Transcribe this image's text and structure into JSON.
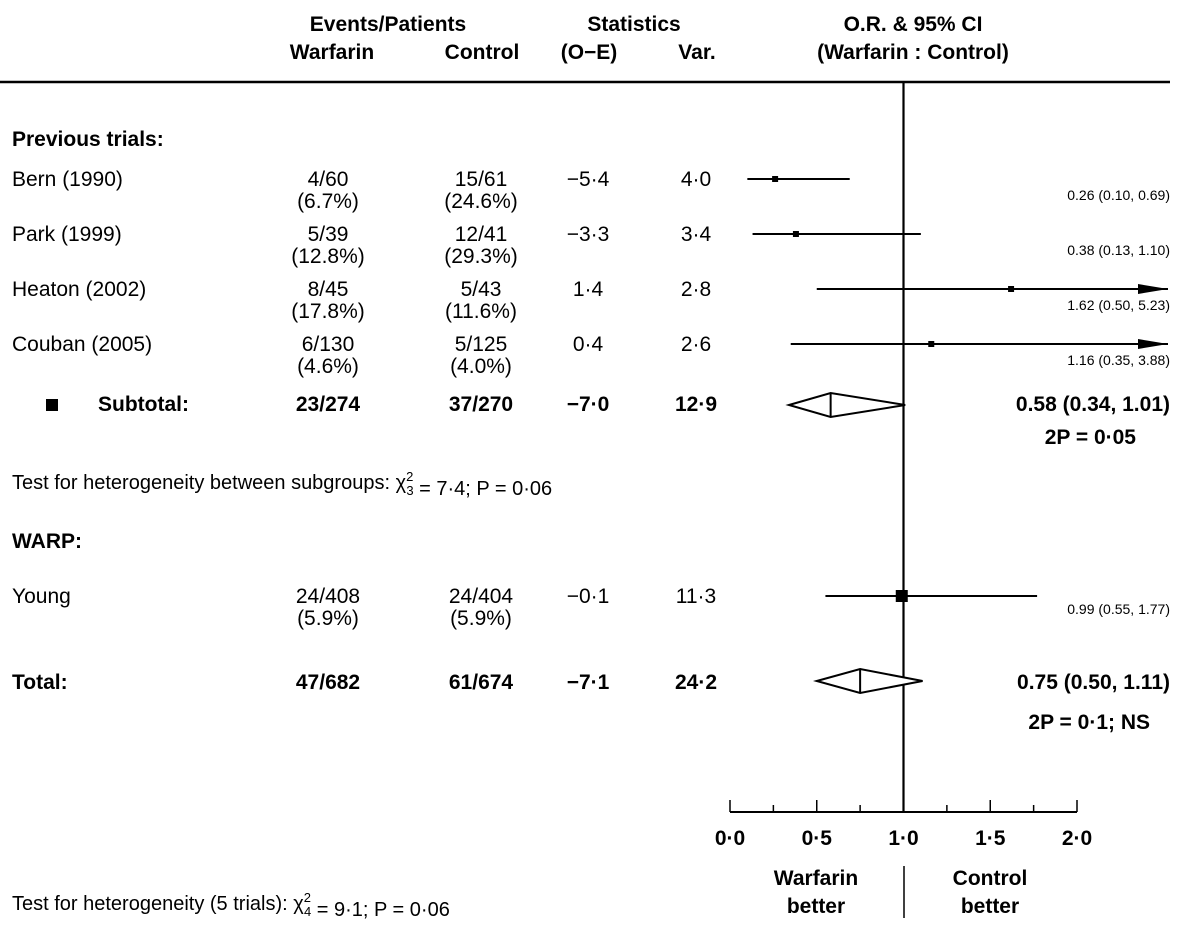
{
  "header": {
    "events_patients": "Events/Patients",
    "warfarin": "Warfarin",
    "control": "Control",
    "statistics": "Statistics",
    "oe": "(O−E)",
    "var": "Var.",
    "or_ci": "O.R. & 95% CI",
    "or_sub": "(Warfarin : Control)"
  },
  "sections": {
    "previous": "Previous trials:",
    "subtotal": "Subtotal:",
    "heterogeneity_sub_pre": "Test for heterogeneity between subgroups: ",
    "heterogeneity_sub_stat": " = 7·4; P = 0·06",
    "warp": "WARP:",
    "total": "Total:",
    "heterogeneity_all_pre": "Test for heterogeneity (5 trials): ",
    "heterogeneity_all_stat": " = 9·1; P = 0·06",
    "chi": "χ"
  },
  "subtotal_p": "2P = 0·05",
  "total_p": "2P = 0·1; NS",
  "axis_labels": {
    "left_line1": "Warfarin",
    "left_line2": "better",
    "right_line1": "Control",
    "right_line2": "better"
  },
  "chart_data": {
    "type": "forest",
    "x_ticks": [
      "0·0",
      "0·5",
      "1·0",
      "1·5",
      "2·0"
    ],
    "xlim": [
      0,
      2
    ],
    "reference_line": 1.0,
    "studies": [
      {
        "name": "Bern (1990)",
        "warfarin": "4/60",
        "warfarin_pct": "(6.7%)",
        "control": "15/61",
        "control_pct": "(24.6%)",
        "oe": "−5·4",
        "var": "4·0",
        "or": 0.26,
        "lo": 0.1,
        "hi": 0.69,
        "or_text": "0.26 (0.10, 0.69)",
        "arrow": false
      },
      {
        "name": "Park (1999)",
        "warfarin": "5/39",
        "warfarin_pct": "(12.8%)",
        "control": "12/41",
        "control_pct": "(29.3%)",
        "oe": "−3·3",
        "var": "3·4",
        "or": 0.38,
        "lo": 0.13,
        "hi": 1.1,
        "or_text": "0.38 (0.13, 1.10)",
        "arrow": false
      },
      {
        "name": "Heaton (2002)",
        "warfarin": "8/45",
        "warfarin_pct": "(17.8%)",
        "control": "5/43",
        "control_pct": "(11.6%)",
        "oe": "1·4",
        "var": "2·8",
        "or": 1.62,
        "lo": 0.5,
        "hi": 5.23,
        "or_text": "1.62 (0.50, 5.23)",
        "arrow": true
      },
      {
        "name": "Couban (2005)",
        "warfarin": "6/130",
        "warfarin_pct": "(4.6%)",
        "control": "5/125",
        "control_pct": "(4.0%)",
        "oe": "0·4",
        "var": "2·6",
        "or": 1.16,
        "lo": 0.35,
        "hi": 3.88,
        "or_text": "1.16 (0.35, 3.88)",
        "arrow": true
      }
    ],
    "subtotal": {
      "warfarin": "23/274",
      "control": "37/270",
      "oe": "−7·0",
      "var": "12·9",
      "or": 0.58,
      "lo": 0.34,
      "hi": 1.01,
      "or_text": "0.58 (0.34, 1.01)"
    },
    "warp": {
      "name": "Young",
      "warfarin": "24/408",
      "warfarin_pct": "(5.9%)",
      "control": "24/404",
      "control_pct": "(5.9%)",
      "oe": "−0·1",
      "var": "11·3",
      "or": 0.99,
      "lo": 0.55,
      "hi": 1.77,
      "or_text": "0.99 (0.55, 1.77)"
    },
    "total": {
      "warfarin": "47/682",
      "control": "61/674",
      "oe": "−7·1",
      "var": "24·2",
      "or": 0.75,
      "lo": 0.5,
      "hi": 1.11,
      "or_text": "0.75 (0.50, 1.11)"
    }
  }
}
